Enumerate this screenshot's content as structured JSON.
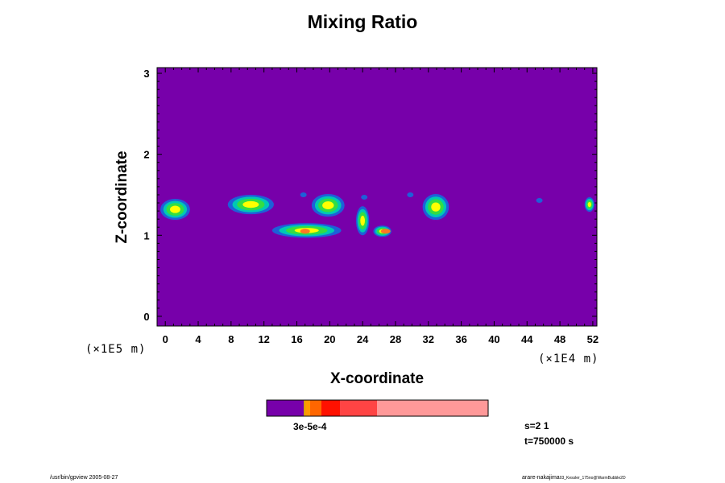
{
  "title": "Mixing Ratio",
  "colors": {
    "background": "#7700aa",
    "plume_edge": "#1e60d8",
    "plume_mid": "#00c8b4",
    "plume_inner": "#33dd44",
    "plume_core": "#ffff00",
    "hot": "#ff7722"
  },
  "chart_data": {
    "type": "heatmap",
    "title": "Mixing Ratio",
    "xlabel": "X-coordinate",
    "ylabel": "Z-coordinate",
    "x_ticks": [
      "0",
      "4",
      "8",
      "12",
      "16",
      "20",
      "24",
      "28",
      "32",
      "36",
      "40",
      "44",
      "48",
      "52"
    ],
    "y_ticks": [
      "0",
      "1",
      "2",
      "3"
    ],
    "xlim": [
      -1,
      52.5
    ],
    "ylim": [
      -0.12,
      3.07
    ],
    "x_scale_label": "(×1E4 m)",
    "y_scale_label": "(×1E5 m)",
    "grid": false,
    "colorbar": {
      "label_text": "3e-5e-4",
      "segments": [
        {
          "color": "#7700aa",
          "width": 46
        },
        {
          "color": "#d8a000",
          "width": 2
        },
        {
          "color": "#ff9900",
          "width": 6
        },
        {
          "color": "#ff6600",
          "width": 14
        },
        {
          "color": "#ff1100",
          "width": 23
        },
        {
          "color": "#ff4444",
          "width": 46
        },
        {
          "color": "#ff9999",
          "width": 138
        }
      ]
    },
    "cloud_blobs": [
      {
        "cx": 1.2,
        "cy": 1.32,
        "rx": 1.8,
        "ry": 0.13
      },
      {
        "cx": 10.4,
        "cy": 1.38,
        "rx": 2.8,
        "ry": 0.12
      },
      {
        "cx": 17.2,
        "cy": 1.06,
        "rx": 4.2,
        "ry": 0.09
      },
      {
        "cx": 19.8,
        "cy": 1.37,
        "rx": 2.0,
        "ry": 0.14
      },
      {
        "cx": 24.0,
        "cy": 1.18,
        "rx": 0.8,
        "ry": 0.18
      },
      {
        "cx": 26.4,
        "cy": 1.05,
        "rx": 1.1,
        "ry": 0.07
      },
      {
        "cx": 32.9,
        "cy": 1.35,
        "rx": 1.6,
        "ry": 0.16
      },
      {
        "cx": 51.6,
        "cy": 1.38,
        "rx": 0.6,
        "ry": 0.09
      }
    ],
    "small_specks": [
      {
        "cx": 16.8,
        "cy": 1.5
      },
      {
        "cx": 24.2,
        "cy": 1.47
      },
      {
        "cx": 29.8,
        "cy": 1.5
      },
      {
        "cx": 45.5,
        "cy": 1.43
      }
    ]
  },
  "info": {
    "s_text": "s=2 1",
    "t_text": "t=750000 s"
  },
  "footer": {
    "left": "/usr/bin/gpview 2005-08-27",
    "right": "arare-nakajima",
    "right_small": "03_Kessler_175no@WarmBubble2D"
  }
}
